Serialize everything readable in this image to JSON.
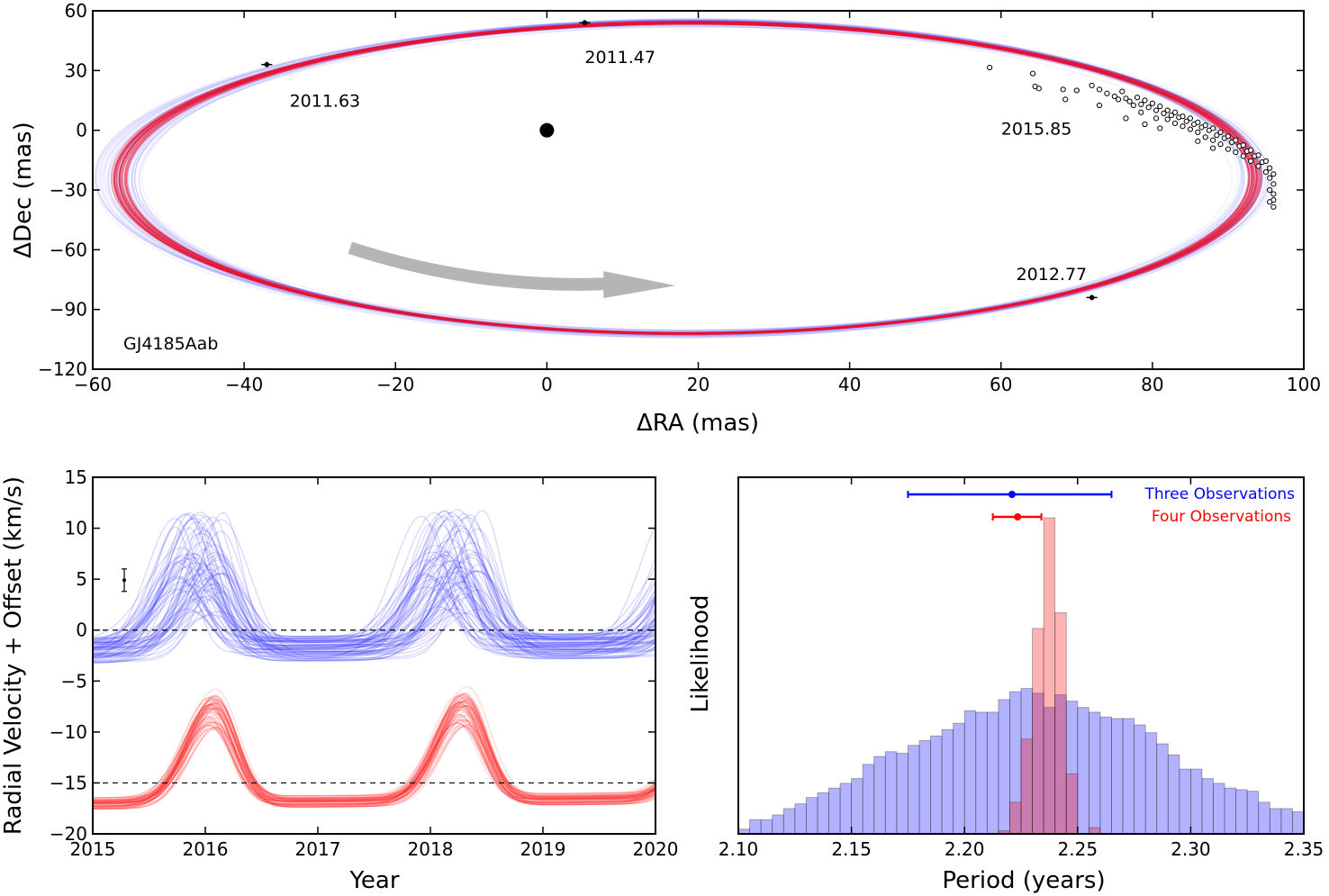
{
  "chart_data": [
    {
      "type": "scatter",
      "panel": "orbit",
      "xlabel": "ΔRA (mas)",
      "ylabel": "ΔDec (mas)",
      "xlim": [
        -60,
        100
      ],
      "ylim": [
        -120,
        60
      ],
      "xticks": [
        -60,
        -40,
        -20,
        0,
        20,
        40,
        60,
        80,
        100
      ],
      "yticks": [
        -120,
        -90,
        -60,
        -30,
        0,
        30,
        60
      ],
      "xtick_labels": [
        "−60",
        "−40",
        "−20",
        "0",
        "20",
        "40",
        "60",
        "80",
        "100"
      ],
      "ytick_labels": [
        "−120",
        "−90",
        "−60",
        "−30",
        "0",
        "30",
        "60"
      ],
      "label": "GJ4185Aab",
      "orbit_ellipse": {
        "center": [
          18.5,
          -24
        ],
        "semi_axes": [
          75,
          78
        ],
        "rotation_deg": -3
      },
      "central_star": {
        "x": 0,
        "y": 0
      },
      "epochs": [
        {
          "label": "2011.47",
          "x": 5,
          "y": 54,
          "label_x": 5,
          "label_y": 37
        },
        {
          "label": "2011.63",
          "x": -37,
          "y": 33,
          "label_x": -34,
          "label_y": 15
        },
        {
          "label": "2015.85",
          "x": 63,
          "y": 1,
          "label_x": 60,
          "label_y": 1
        },
        {
          "label": "2012.77",
          "x": 72,
          "y": -84,
          "label_x": 62,
          "label_y": -72
        }
      ],
      "predicted_points": [
        [
          58.5,
          31.5
        ],
        [
          64.2,
          28.5
        ],
        [
          64.5,
          22.0
        ],
        [
          65.0,
          21.0
        ],
        [
          68.2,
          20.5
        ],
        [
          68.5,
          15.5
        ],
        [
          70.0,
          20.0
        ],
        [
          72.0,
          22.5
        ],
        [
          73.0,
          20.5
        ],
        [
          74.0,
          18.5
        ],
        [
          75.0,
          17.0
        ],
        [
          75.5,
          15.5
        ],
        [
          76.0,
          19.5
        ],
        [
          76.5,
          16.0
        ],
        [
          77.0,
          14.5
        ],
        [
          77.5,
          12.5
        ],
        [
          78.0,
          16.5
        ],
        [
          78.5,
          13.0
        ],
        [
          78.5,
          9.0
        ],
        [
          79.0,
          15.0
        ],
        [
          79.5,
          11.5
        ],
        [
          80.0,
          13.5
        ],
        [
          80.5,
          10.0
        ],
        [
          80.5,
          6.0
        ],
        [
          81.0,
          12.0
        ],
        [
          81.5,
          8.5
        ],
        [
          82.0,
          10.0
        ],
        [
          82.0,
          5.5
        ],
        [
          82.5,
          7.5
        ],
        [
          83.0,
          3.5
        ],
        [
          83.0,
          9.0
        ],
        [
          83.5,
          6.5
        ],
        [
          84.0,
          2.0
        ],
        [
          84.0,
          7.0
        ],
        [
          84.5,
          4.5
        ],
        [
          85.0,
          0.5
        ],
        [
          85.0,
          6.0
        ],
        [
          85.5,
          3.0
        ],
        [
          86.0,
          -1.0
        ],
        [
          86.0,
          4.0
        ],
        [
          86.5,
          1.5
        ],
        [
          87.0,
          -3.5
        ],
        [
          87.0,
          2.5
        ],
        [
          87.5,
          0.0
        ],
        [
          88.0,
          -5.0
        ],
        [
          88.0,
          1.0
        ],
        [
          88.5,
          -2.5
        ],
        [
          89.0,
          -7.0
        ],
        [
          89.0,
          -1.0
        ],
        [
          89.5,
          -4.0
        ],
        [
          90.0,
          -9.5
        ],
        [
          90.0,
          -3.0
        ],
        [
          90.5,
          -6.0
        ],
        [
          91.0,
          -11.0
        ],
        [
          91.0,
          -5.0
        ],
        [
          91.5,
          -8.0
        ],
        [
          92.0,
          -13.0
        ],
        [
          92.0,
          -7.5
        ],
        [
          92.5,
          -10.5
        ],
        [
          93.0,
          -15.5
        ],
        [
          93.0,
          -10.0
        ],
        [
          93.5,
          -13.0
        ],
        [
          94.0,
          -18.0
        ],
        [
          94.0,
          -12.5
        ],
        [
          94.5,
          -16.0
        ],
        [
          95.0,
          -21.0
        ],
        [
          95.0,
          -15.5
        ],
        [
          95.5,
          -19.0
        ],
        [
          95.5,
          -24.0
        ],
        [
          96.0,
          -22.0
        ],
        [
          96.0,
          -27.0
        ],
        [
          95.5,
          -30.0
        ],
        [
          96.0,
          -32.0
        ],
        [
          96.0,
          -35.0
        ],
        [
          95.5,
          -36.0
        ],
        [
          96.0,
          -38.5
        ],
        [
          79.0,
          3.0
        ],
        [
          81.0,
          1.0
        ],
        [
          86.0,
          -5.5
        ],
        [
          88.0,
          -9.0
        ],
        [
          76.5,
          6.0
        ],
        [
          73.0,
          12.5
        ]
      ],
      "motion_arrow": {
        "from": [
          -26,
          -59
        ],
        "to": [
          17,
          -78
        ]
      },
      "colors": {
        "model_dense": "#e8112d",
        "model_samples": "#2222ff",
        "arrow": "#b5b5b5"
      }
    },
    {
      "type": "line",
      "panel": "radial_velocity",
      "xlabel": "Year",
      "ylabel": "Radial Velocity + Offset (km/s)",
      "xlim": [
        2015,
        2020
      ],
      "ylim": [
        -20,
        15
      ],
      "xticks": [
        2015,
        2016,
        2017,
        2018,
        2019,
        2020
      ],
      "yticks": [
        -20,
        -15,
        -10,
        -5,
        0,
        5,
        10,
        15
      ],
      "xtick_labels": [
        "2015",
        "2016",
        "2017",
        "2018",
        "2019",
        "2020"
      ],
      "ytick_labels": [
        "−20",
        "−15",
        "−10",
        "−5",
        "0",
        "5",
        "10",
        "15"
      ],
      "reference_lines": [
        0,
        -15
      ],
      "errorbar": {
        "x": 2015.28,
        "y": 4.9,
        "err": 1.1
      },
      "series": [
        {
          "color": "#2222ff",
          "offset": 0,
          "peak": 2015.95,
          "period": 2.25,
          "amp_range": [
            4,
            14
          ],
          "spread": "wide"
        },
        {
          "color": "#ff1f1f",
          "offset": -15,
          "peak": 2016.07,
          "period": 2.22,
          "amp_range": [
            7.5,
            11
          ],
          "spread": "narrow"
        }
      ]
    },
    {
      "type": "histogram",
      "panel": "period_posterior",
      "xlabel": "Period (years)",
      "ylabel": "Likelihood",
      "xlim": [
        2.1,
        2.35
      ],
      "xticks": [
        2.1,
        2.15,
        2.2,
        2.25,
        2.3,
        2.35
      ],
      "xtick_labels": [
        "2.10",
        "2.15",
        "2.20",
        "2.25",
        "2.30",
        "2.35"
      ],
      "bin_width": 0.005,
      "bin_start": 2.1,
      "series": [
        {
          "name": "Three Observations",
          "color": "#0000ff",
          "counts": [
            3,
            9,
            9,
            12,
            16,
            19,
            23,
            26,
            29,
            32,
            35,
            44,
            49,
            52,
            51,
            56,
            59,
            62,
            66,
            70,
            78,
            77,
            77,
            85,
            90,
            92,
            89,
            80,
            88,
            84,
            80,
            77,
            74,
            73,
            73,
            69,
            64,
            57,
            50,
            41,
            41,
            35,
            32,
            29,
            28,
            27,
            20,
            16,
            16,
            14,
            9,
            9,
            7,
            3,
            3
          ],
          "summary": {
            "center": 2.221,
            "low": 2.175,
            "high": 2.265
          }
        },
        {
          "name": "Four Observations",
          "color": "#ff0000",
          "counts": [
            0,
            0,
            0,
            0,
            0,
            0,
            0,
            0,
            0,
            0,
            0,
            0,
            0,
            0,
            0,
            0,
            0,
            0,
            0,
            0,
            0,
            0,
            0,
            2,
            20,
            60,
            130,
            200,
            140,
            38,
            0,
            4,
            0,
            0,
            0,
            0,
            0,
            0,
            0,
            0,
            0,
            0,
            0,
            0,
            0,
            0,
            0,
            0,
            0,
            0,
            0,
            0,
            0,
            0,
            0
          ],
          "summary": {
            "center": 2.2235,
            "low": 2.2125,
            "high": 2.234
          }
        }
      ],
      "legend_placement": "top-right"
    }
  ]
}
